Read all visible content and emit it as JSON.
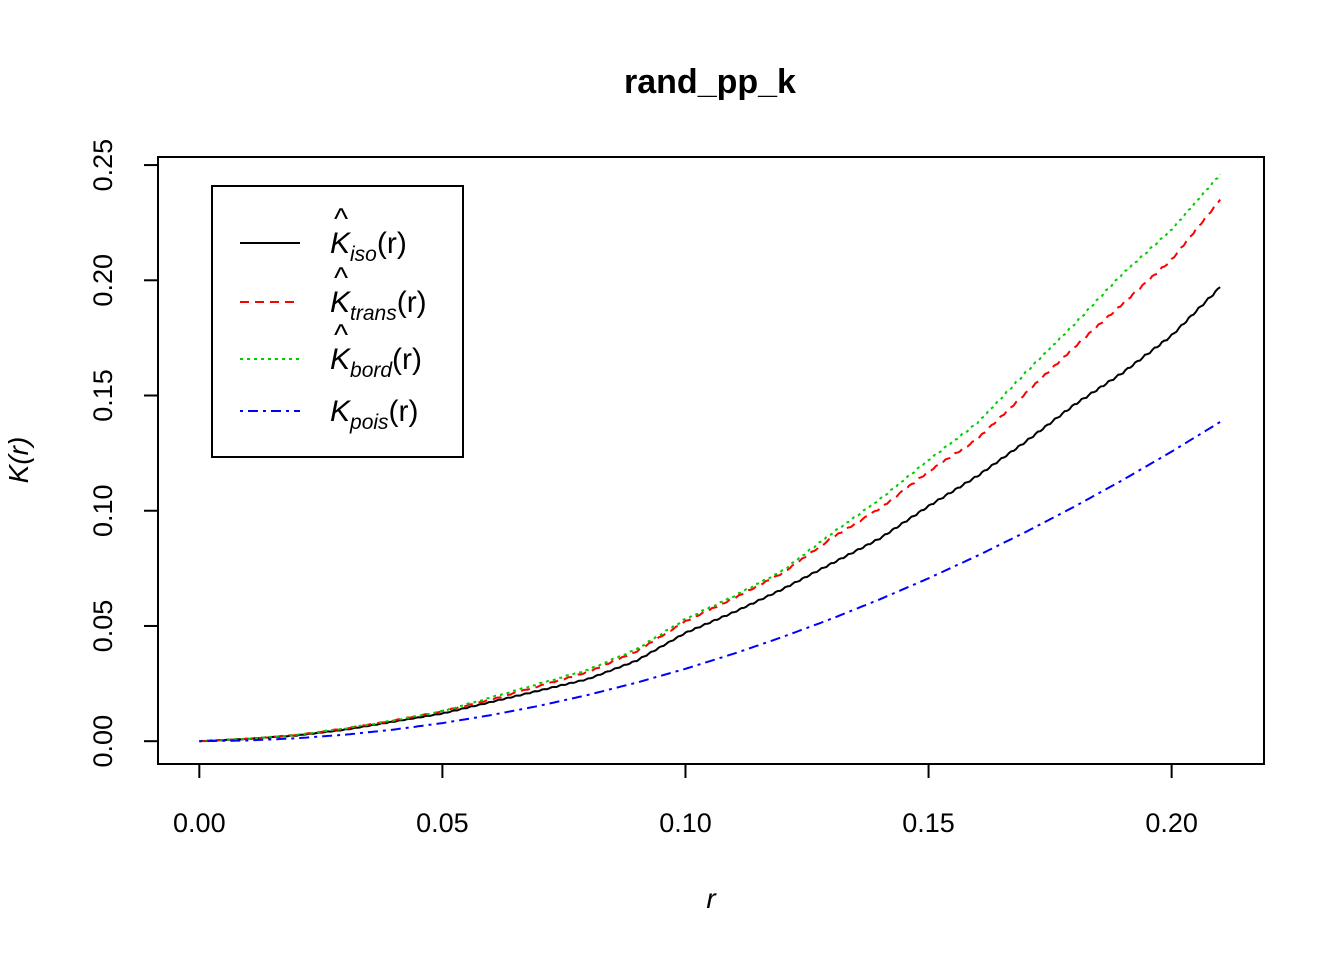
{
  "chart_data": {
    "type": "line",
    "title": "rand_pp_k",
    "xlabel": "r",
    "ylabel": "K(r)",
    "xlim": [
      -0.0085,
      0.219
    ],
    "ylim": [
      -0.0099,
      0.2535
    ],
    "x_ticks": [
      0.0,
      0.05,
      0.1,
      0.15,
      0.2
    ],
    "x_tick_labels": [
      "0.00",
      "0.05",
      "0.10",
      "0.15",
      "0.20"
    ],
    "y_ticks": [
      0.0,
      0.05,
      0.1,
      0.15,
      0.2,
      0.25
    ],
    "y_tick_labels": [
      "0.00",
      "0.05",
      "0.10",
      "0.15",
      "0.20",
      "0.25"
    ],
    "legend_position": "top-left",
    "x": [
      0.0,
      0.01,
      0.02,
      0.03,
      0.04,
      0.05,
      0.06,
      0.07,
      0.08,
      0.09,
      0.1,
      0.11,
      0.12,
      0.13,
      0.14,
      0.15,
      0.16,
      0.17,
      0.18,
      0.19,
      0.2,
      0.21
    ],
    "series": [
      {
        "name": "K̂iso(r)",
        "color": "#000000",
        "dash": "solid",
        "values": [
          0.0,
          0.001,
          0.0025,
          0.005,
          0.0085,
          0.012,
          0.017,
          0.022,
          0.027,
          0.035,
          0.047,
          0.056,
          0.066,
          0.077,
          0.088,
          0.102,
          0.115,
          0.13,
          0.146,
          0.16,
          0.176,
          0.197
        ]
      },
      {
        "name": "K̂trans(r)",
        "color": "#ff0000",
        "dash": "dashed",
        "values": [
          0.0,
          0.001,
          0.0027,
          0.0055,
          0.009,
          0.013,
          0.018,
          0.024,
          0.03,
          0.039,
          0.052,
          0.062,
          0.073,
          0.088,
          0.101,
          0.117,
          0.131,
          0.151,
          0.171,
          0.19,
          0.209,
          0.235
        ]
      },
      {
        "name": "K̂bord(r)",
        "color": "#00cd00",
        "dash": "dotted",
        "values": [
          0.0,
          0.001,
          0.0027,
          0.0055,
          0.009,
          0.013,
          0.019,
          0.025,
          0.031,
          0.04,
          0.053,
          0.063,
          0.074,
          0.09,
          0.105,
          0.122,
          0.138,
          0.16,
          0.181,
          0.203,
          0.222,
          0.246
        ]
      },
      {
        "name": "Kpois(r)",
        "color": "#0000ff",
        "dash": "dotdash",
        "values": [
          0.0,
          0.000314,
          0.001257,
          0.002827,
          0.005027,
          0.007854,
          0.01131,
          0.015394,
          0.020106,
          0.025447,
          0.031416,
          0.038013,
          0.045239,
          0.053093,
          0.061575,
          0.070686,
          0.080425,
          0.090792,
          0.101788,
          0.113411,
          0.125664,
          0.138544
        ]
      }
    ]
  },
  "legend": {
    "items": [
      {
        "sym": "K",
        "hat": "^",
        "sub": "iso",
        "tail": "(r)"
      },
      {
        "sym": "K",
        "hat": "^",
        "sub": "trans",
        "tail": "(r)"
      },
      {
        "sym": "K",
        "hat": "^",
        "sub": "bord",
        "tail": "(r)"
      },
      {
        "sym": "K",
        "hat": "",
        "sub": "pois",
        "tail": "(r)"
      }
    ]
  }
}
